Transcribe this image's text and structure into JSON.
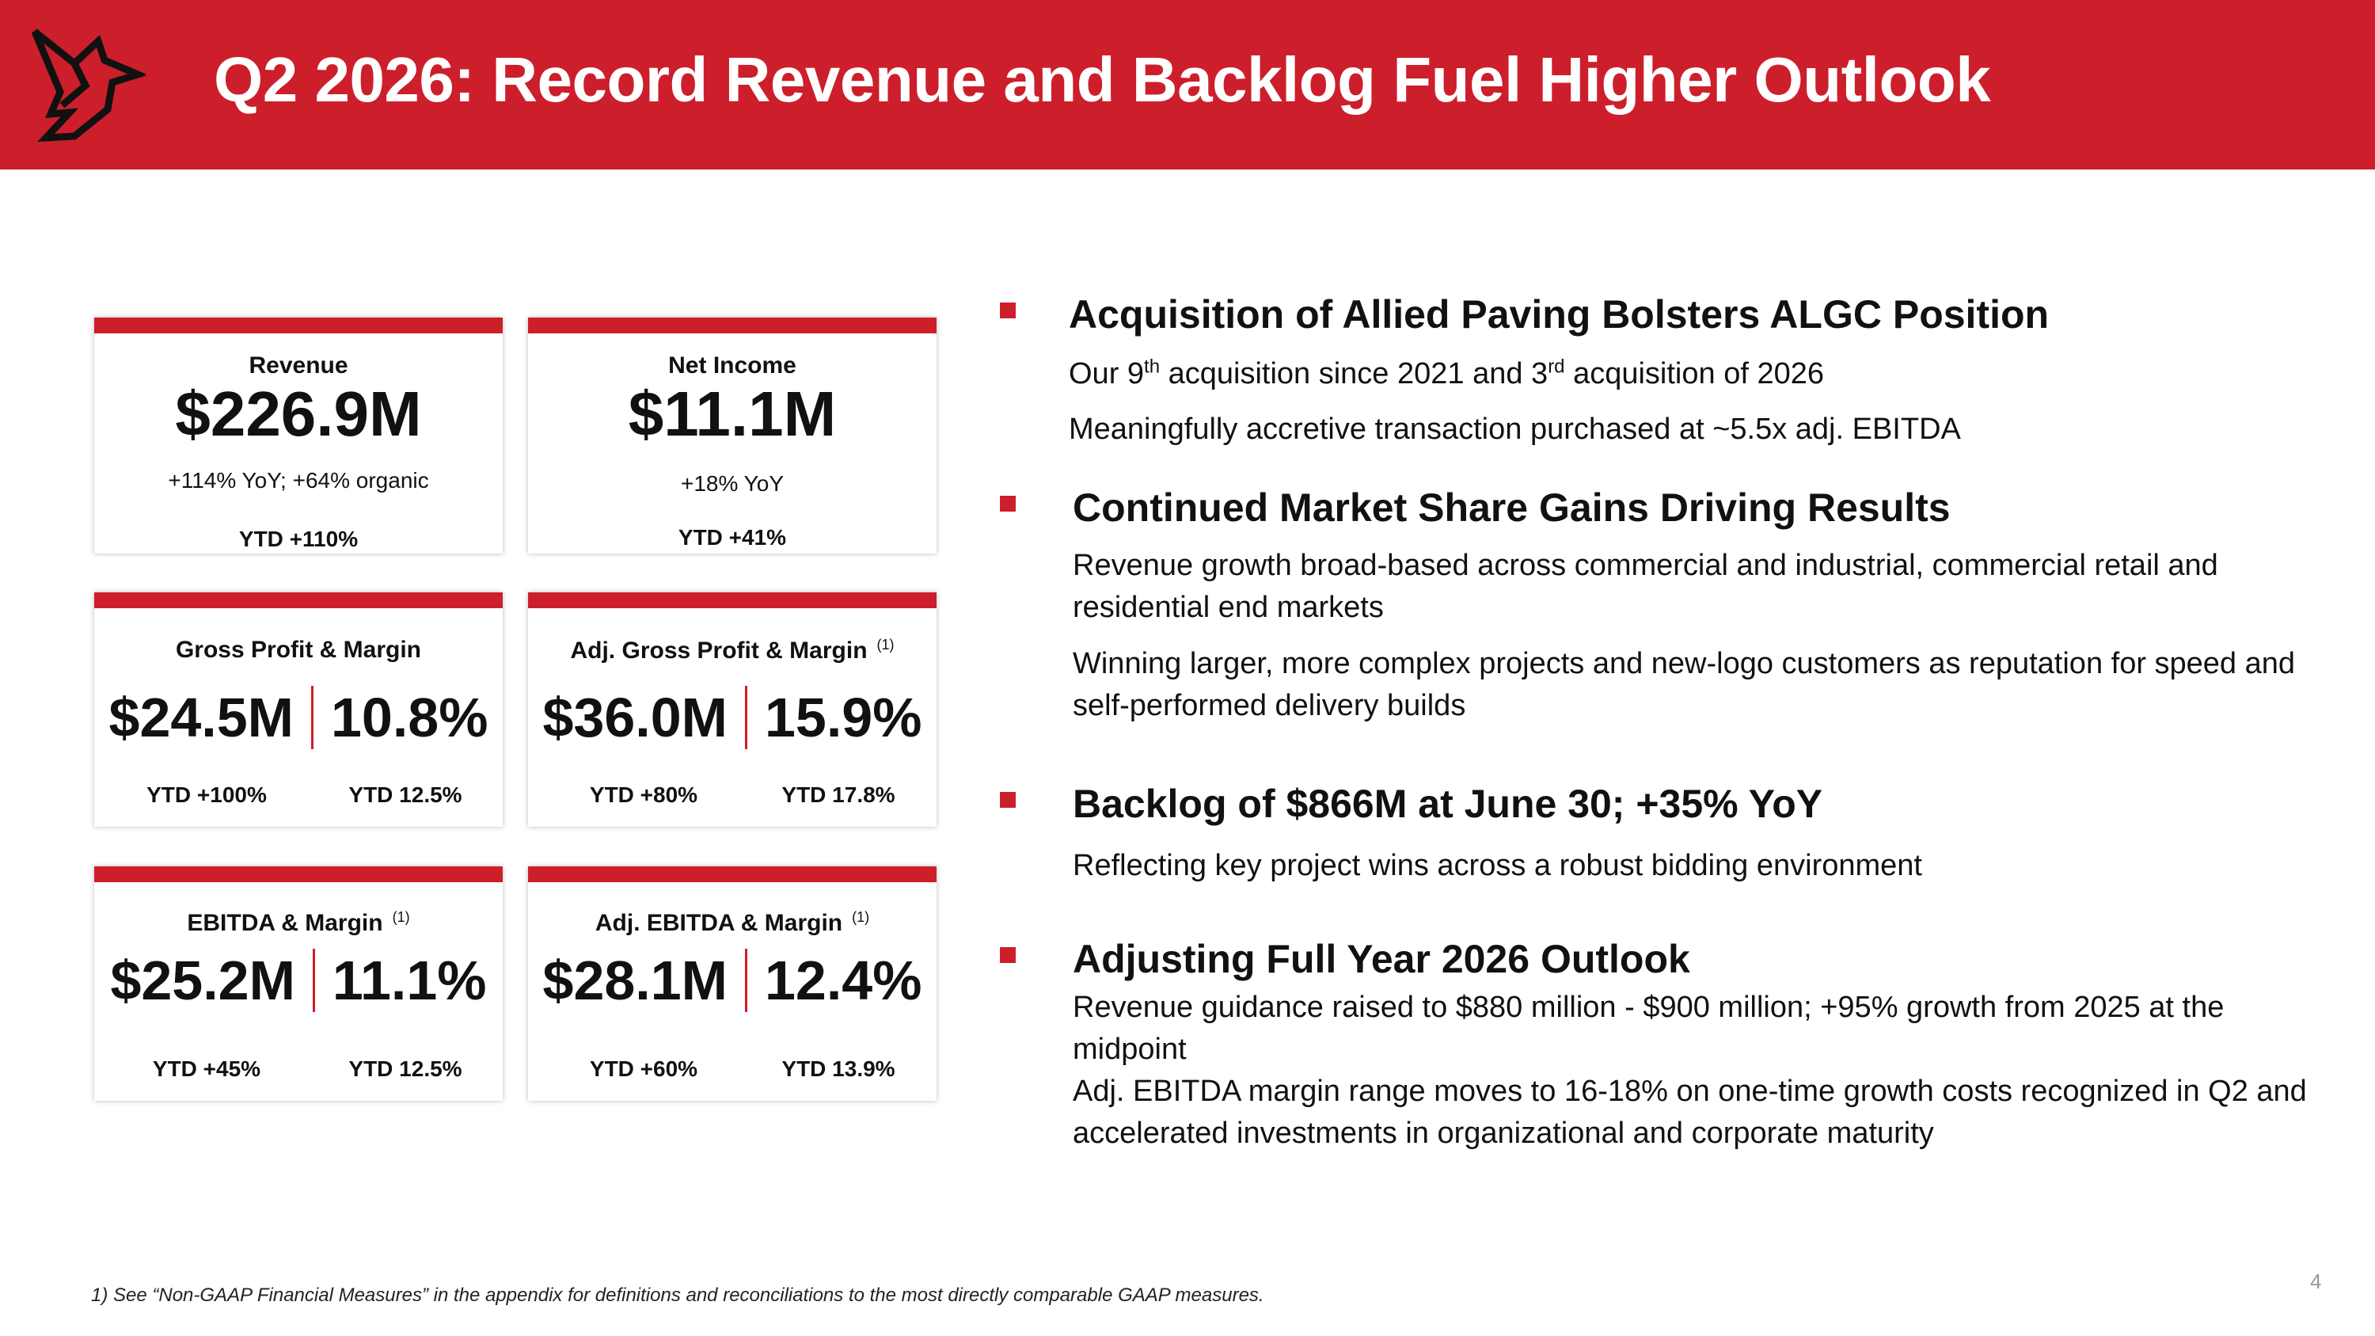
{
  "header": {
    "title": "Q2 2026: Record Revenue and Backlog Fuel Higher Outlook",
    "logo_icon": "cardinal-bird-icon",
    "background": "#cc1f2b"
  },
  "cards": {
    "revenue": {
      "label": "Revenue",
      "value": "$226.9M",
      "growth": "+114% YoY; +64% organic",
      "ytd": "YTD +110%"
    },
    "net_income": {
      "label": "Net Income",
      "value": "$11.1M",
      "growth": "+18% YoY",
      "ytd": "YTD +41%"
    },
    "gross_profit": {
      "label": "Gross Profit & Margin",
      "value": "$24.5M",
      "margin": "10.8%",
      "ytd_value": "YTD +100%",
      "ytd_margin": "YTD 12.5%"
    },
    "adj_gross_profit": {
      "label": "Adj. Gross Profit & Margin",
      "note": "(1)",
      "value": "$36.0M",
      "margin": "15.9%",
      "ytd_value": "YTD +80%",
      "ytd_margin": "YTD 17.8%"
    },
    "ebitda": {
      "label": "EBITDA & Margin",
      "note": "(1)",
      "value": "$25.2M",
      "margin": "11.1%",
      "ytd_value": "YTD +45%",
      "ytd_margin": "YTD 12.5%"
    },
    "adj_ebitda": {
      "label": "Adj. EBITDA & Margin",
      "note": "(1)",
      "value": "$28.1M",
      "margin": "12.4%",
      "ytd_value": "YTD +60%",
      "ytd_margin": "YTD 13.9%"
    }
  },
  "highlights": {
    "acquisition": {
      "heading": "Acquisition of Allied Paving Bolsters ALGC Position",
      "line1_a": "Our 9",
      "line1_sup1": "th",
      "line1_b": " acquisition since 2021 and 3",
      "line1_sup2": "rd",
      "line1_c": " acquisition of 2026",
      "line2": "Meaningfully accretive transaction purchased at ~5.5x adj. EBITDA"
    },
    "market_share": {
      "heading": "Continued Market Share Gains Driving Results",
      "line1": "Revenue growth broad-based across commercial and industrial, commercial retail and residential end markets",
      "line2": "Winning larger, more complex projects and new-logo customers as reputation for speed and self-performed delivery builds"
    },
    "backlog": {
      "heading": "Backlog of $866M at June 30; +35% YoY",
      "line1": "Reflecting key project wins across a robust bidding environment"
    },
    "outlook": {
      "heading": "Adjusting Full Year 2026 Outlook",
      "line1": "Revenue guidance raised to $880 million - $900 million; +95% growth from 2025 at the midpoint",
      "line2": "Adj. EBITDA margin range moves to 16-18% on one-time growth costs recognized in Q2 and accelerated investments in organizational and corporate maturity"
    }
  },
  "footnote": "1) See “Non-GAAP Financial Measures” in the appendix for definitions and reconciliations to the most directly comparable GAAP measures.",
  "page_number": "4"
}
